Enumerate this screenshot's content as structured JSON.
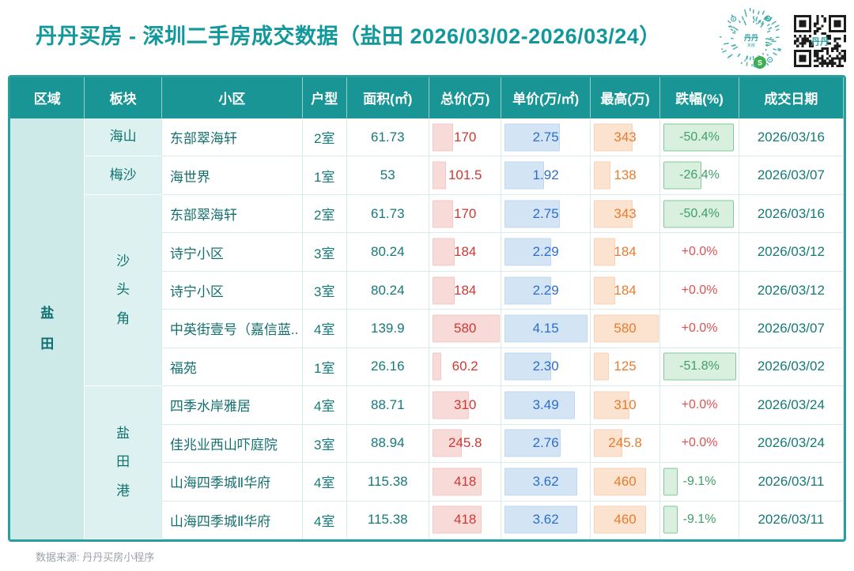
{
  "header": {
    "title": "丹丹买房 - 深圳二手房成交数据（盐田 2026/03/02-2026/03/24）"
  },
  "icons": [
    "miniprogram-qr-icon",
    "qr-code-icon"
  ],
  "colors": {
    "accent_teal": "#12989b",
    "header_bg": "#1a9595",
    "region_bg": "#cdeae8",
    "block_bg": "#ddf2f0",
    "total_text": "#cf3730",
    "total_bar": "#f8dbd9",
    "unit_text": "#2e6ecb",
    "unit_bar": "#d3e4f5",
    "max_text": "#e87b2f",
    "max_bar": "#fbe3d0",
    "drop_text": "#3f9f68",
    "drop_bar": "#daf0de",
    "rise_text": "#e05252",
    "date_text": "#157a78",
    "outer_border": "#2a9d9d"
  },
  "chart_data": {
    "type": "table",
    "title": "丹丹买房 - 深圳二手房成交数据（盐田 2026/03/02-2026/03/24）",
    "columns": [
      "区域",
      "板块",
      "小区",
      "户型",
      "面积(㎡)",
      "总价(万)",
      "单价(万/㎡)",
      "最高(万)",
      "跌幅(%)",
      "成交日期"
    ],
    "region": "盐田",
    "blocks": [
      {
        "label": "海山",
        "rows": 1
      },
      {
        "label": "梅沙",
        "rows": 1
      },
      {
        "label": "沙头角",
        "rows": 5
      },
      {
        "label": "盐田港",
        "rows": 4
      }
    ],
    "rows": [
      {
        "community": "东部翠海轩",
        "layout": "2室",
        "area": "61.73",
        "total": "170",
        "unit": "2.75",
        "max": "343",
        "drop": "-50.4%",
        "date": "2026/03/16"
      },
      {
        "community": "海世界",
        "layout": "1室",
        "area": "53",
        "total": "101.5",
        "unit": "1.92",
        "max": "138",
        "drop": "-26.4%",
        "date": "2026/03/07"
      },
      {
        "community": "东部翠海轩",
        "layout": "2室",
        "area": "61.73",
        "total": "170",
        "unit": "2.75",
        "max": "343",
        "drop": "-50.4%",
        "date": "2026/03/16"
      },
      {
        "community": "诗宁小区",
        "layout": "3室",
        "area": "80.24",
        "total": "184",
        "unit": "2.29",
        "max": "184",
        "drop": "+0.0%",
        "date": "2026/03/12"
      },
      {
        "community": "诗宁小区",
        "layout": "3室",
        "area": "80.24",
        "total": "184",
        "unit": "2.29",
        "max": "184",
        "drop": "+0.0%",
        "date": "2026/03/12"
      },
      {
        "community": "中英街壹号（嘉信蓝..",
        "layout": "4室",
        "area": "139.9",
        "total": "580",
        "unit": "4.15",
        "max": "580",
        "drop": "+0.0%",
        "date": "2026/03/07"
      },
      {
        "community": "福苑",
        "layout": "1室",
        "area": "26.16",
        "total": "60.2",
        "unit": "2.30",
        "max": "125",
        "drop": "-51.8%",
        "date": "2026/03/02"
      },
      {
        "community": "四季水岸雅居",
        "layout": "4室",
        "area": "88.71",
        "total": "310",
        "unit": "3.49",
        "max": "310",
        "drop": "+0.0%",
        "date": "2026/03/24"
      },
      {
        "community": "佳兆业西山吓庭院",
        "layout": "3室",
        "area": "88.94",
        "total": "245.8",
        "unit": "2.76",
        "max": "245.8",
        "drop": "+0.0%",
        "date": "2026/03/24"
      },
      {
        "community": "山海四季城Ⅱ华府",
        "layout": "4室",
        "area": "115.38",
        "total": "418",
        "unit": "3.62",
        "max": "460",
        "drop": "-9.1%",
        "date": "2026/03/11"
      },
      {
        "community": "山海四季城Ⅱ华府",
        "layout": "4室",
        "area": "115.38",
        "total": "418",
        "unit": "3.62",
        "max": "460",
        "drop": "-9.1%",
        "date": "2026/03/11"
      }
    ]
  },
  "footer": {
    "source_label": "数据来源: 丹丹买房小程序"
  }
}
